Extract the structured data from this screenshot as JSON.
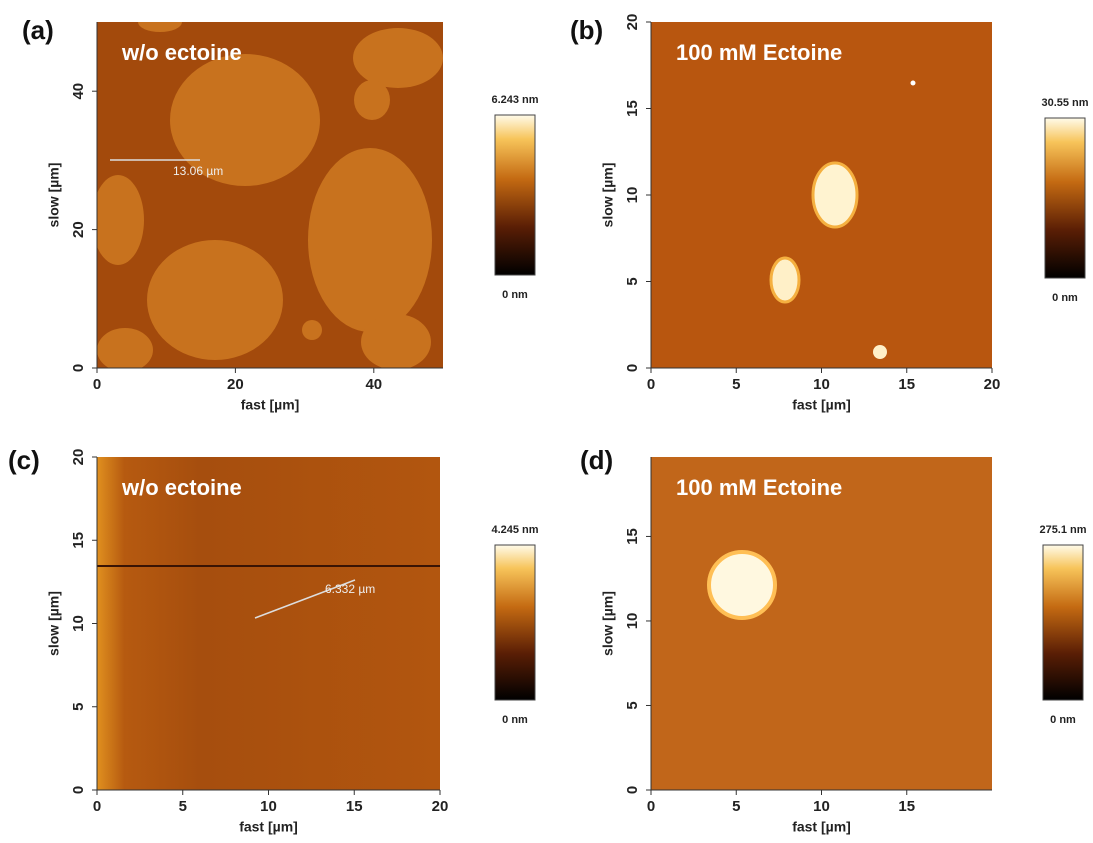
{
  "panels": [
    {
      "label": "(a)",
      "title": "w/o ectoine",
      "x_label": "fast [µm]",
      "y_label": "slow [µm]",
      "xlim": [
        0,
        50
      ],
      "xticks": [
        0,
        20,
        40
      ],
      "ylim": [
        0,
        50
      ],
      "yticks": [
        0,
        20,
        40
      ],
      "colorbar": {
        "max_label": "6.243 nm",
        "min_label": "0 nm"
      },
      "annotation": "13.06 µm"
    },
    {
      "label": "(b)",
      "title": "100 mM Ectoine",
      "x_label": "fast [µm]",
      "y_label": "slow [µm]",
      "xlim": [
        0,
        20
      ],
      "xticks": [
        0,
        5,
        10,
        15,
        20
      ],
      "ylim": [
        0,
        20
      ],
      "yticks": [
        0,
        5,
        10,
        15,
        20
      ],
      "colorbar": {
        "max_label": "30.55 nm",
        "min_label": "0 nm"
      }
    },
    {
      "label": "(c)",
      "title": "w/o ectoine",
      "x_label": "fast [µm]",
      "y_label": "slow [µm]",
      "xlim": [
        0,
        20
      ],
      "xticks": [
        0,
        5,
        10,
        15,
        20
      ],
      "ylim": [
        0,
        20
      ],
      "yticks": [
        0,
        5,
        10,
        15,
        20
      ],
      "colorbar": {
        "max_label": "4.245 nm",
        "min_label": "0 nm"
      },
      "annotation": "6.332 µm"
    },
    {
      "label": "(d)",
      "title": "100 mM Ectoine",
      "x_label": "fast [µm]",
      "y_label": "slow [µm]",
      "xlim": [
        0,
        20
      ],
      "xticks": [
        0,
        5,
        10,
        15
      ],
      "ylim": [
        0,
        19.7
      ],
      "yticks": [
        0,
        5,
        10,
        15
      ],
      "colorbar": {
        "max_label": "275.1 nm",
        "min_label": "0 nm"
      }
    }
  ]
}
